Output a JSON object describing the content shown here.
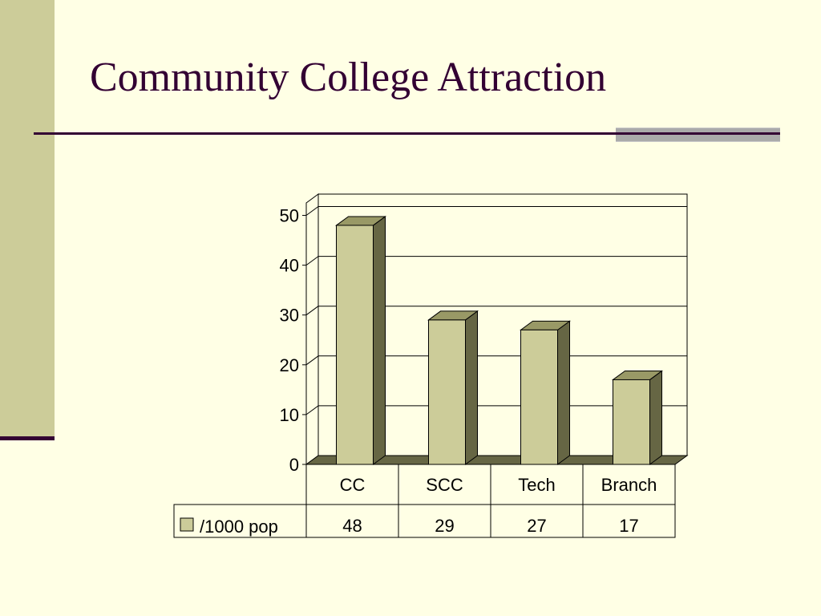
{
  "slide": {
    "title": "Community College Attraction"
  },
  "colors": {
    "background": "#FFFFE5",
    "accent_stripe": "#CCCC99",
    "title_text": "#330033",
    "bar_front": "#CCCC99",
    "bar_side": "#666644",
    "bar_top": "#999966",
    "floor": "#666644"
  },
  "chart_data": {
    "type": "bar",
    "title": "",
    "xlabel": "",
    "ylabel": "",
    "ylim": [
      0,
      50
    ],
    "yticks": [
      0,
      10,
      20,
      30,
      40,
      50
    ],
    "categories": [
      "CC",
      "SCC",
      "Tech",
      "Branch"
    ],
    "series": [
      {
        "name": "/1000 pop",
        "values": [
          48,
          29,
          27,
          17
        ]
      }
    ],
    "grid": true,
    "legend": "data-table",
    "data_table": true,
    "style": "3d-column"
  }
}
